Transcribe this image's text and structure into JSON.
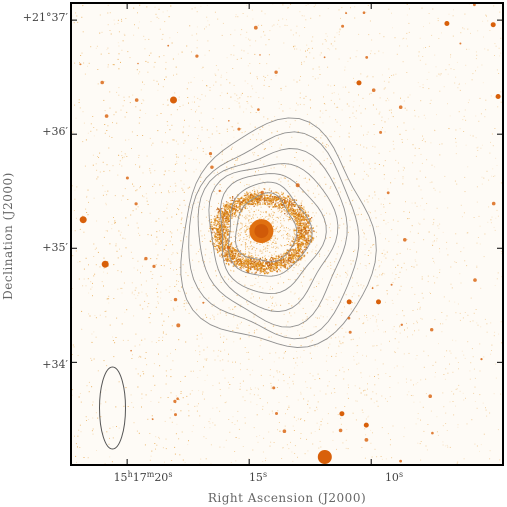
{
  "chart_data": {
    "type": "scatter",
    "title": "",
    "xlabel": "Right Ascension (J2000)",
    "ylabel": "Declination (J2000)",
    "x_ticks": [
      {
        "ra_s": 20,
        "label_main": "15",
        "label_h": "h",
        "label_mid": "17",
        "label_m": "m",
        "label_end": "20",
        "label_s": "s"
      },
      {
        "ra_s": 15,
        "label_main": "15",
        "label_s": "s"
      },
      {
        "ra_s": 10,
        "label_main": "10",
        "label_s": "s"
      }
    ],
    "y_ticks": [
      {
        "dec_arcmin": 37,
        "label": "+21°37′"
      },
      {
        "dec_arcmin": 36,
        "label": "+36′"
      },
      {
        "dec_arcmin": 35,
        "label": "+35′"
      },
      {
        "dec_arcmin": 34,
        "label": "+34′"
      }
    ],
    "xlim_ra_s": [
      22.3,
      4.6
    ],
    "ylim_dec_arcmin": [
      37.15,
      33.1
    ],
    "grid": false,
    "colors": {
      "background": "#fefbf6",
      "points": "#e08a10",
      "bright_stars": "#d8600a",
      "contours": "#909090",
      "frame": "#000000",
      "beam": "#555555"
    },
    "nebula": {
      "center_ra_s": 14.5,
      "center_dec_arcmin": 35.15,
      "central_star": true
    },
    "contour_levels": 7,
    "beam_ellipse": {
      "ra_s": 20.6,
      "dec_arcmin": 33.6
    },
    "bright_stars": [
      {
        "ra_s": 11.9,
        "dec_arcmin": 33.17
      },
      {
        "ra_s": 18.1,
        "dec_arcmin": 36.3
      },
      {
        "ra_s": 20.9,
        "dec_arcmin": 34.86
      },
      {
        "ra_s": 21.8,
        "dec_arcmin": 35.25
      },
      {
        "ra_s": 5.0,
        "dec_arcmin": 36.96
      },
      {
        "ra_s": 4.8,
        "dec_arcmin": 36.33
      },
      {
        "ra_s": 10.9,
        "dec_arcmin": 34.53
      },
      {
        "ra_s": 9.7,
        "dec_arcmin": 34.53
      },
      {
        "ra_s": 10.5,
        "dec_arcmin": 36.45
      },
      {
        "ra_s": 10.2,
        "dec_arcmin": 33.45
      },
      {
        "ra_s": 11.2,
        "dec_arcmin": 33.55
      },
      {
        "ra_s": 6.9,
        "dec_arcmin": 36.97
      }
    ]
  }
}
